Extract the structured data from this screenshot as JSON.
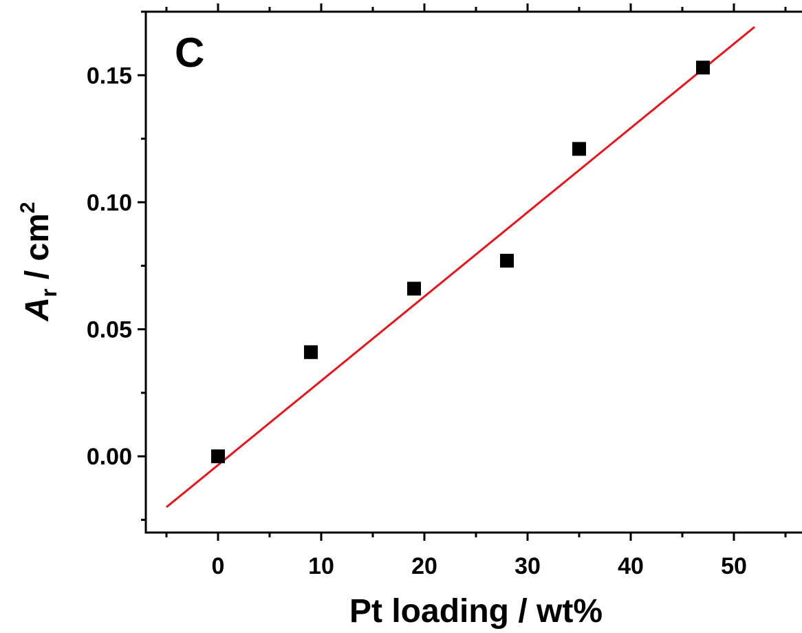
{
  "chart_data": {
    "type": "scatter",
    "panel_label": "C",
    "xlabel": "Pt loading / wt%",
    "ylabel": {
      "symbol": "A",
      "subscript": "r",
      "unit": " / cm",
      "superscript": "2"
    },
    "xlim": [
      -7,
      57
    ],
    "ylim": [
      -0.03,
      0.175
    ],
    "xticks": [
      0,
      10,
      20,
      30,
      40,
      50
    ],
    "xtick_labels": [
      "0",
      "10",
      "20",
      "30",
      "40",
      "50"
    ],
    "yticks": [
      0.0,
      0.05,
      0.1,
      0.15
    ],
    "ytick_labels": [
      "0.00",
      "0.05",
      "0.10",
      "0.15"
    ],
    "x_minor_step": 5,
    "y_minor_step": 0.025,
    "grid": false,
    "legend": "none",
    "series": [
      {
        "marker": "square",
        "color": "#000000",
        "points": [
          {
            "x": 0,
            "y": 0.0
          },
          {
            "x": 9,
            "y": 0.041
          },
          {
            "x": 19,
            "y": 0.066
          },
          {
            "x": 28,
            "y": 0.077
          },
          {
            "x": 35,
            "y": 0.121
          },
          {
            "x": 47,
            "y": 0.153
          }
        ]
      }
    ],
    "fit_line": {
      "color": "#e8141c",
      "points": [
        {
          "x": -5,
          "y": -0.02
        },
        {
          "x": 52,
          "y": 0.169
        }
      ]
    }
  }
}
